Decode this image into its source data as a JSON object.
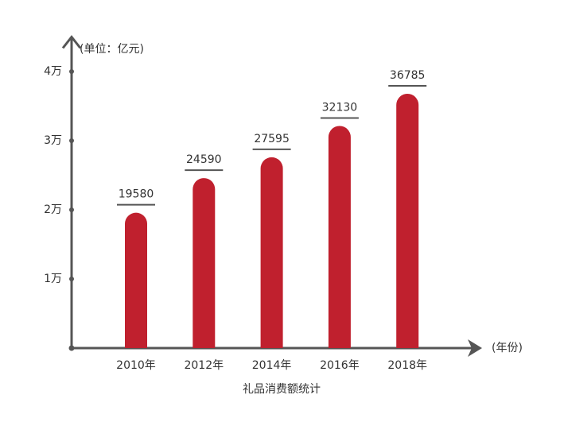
{
  "chart_data": {
    "type": "bar",
    "title": "礼品消费额统计",
    "y_label": "(单位：亿元)",
    "x_label": "(年份)",
    "categories": [
      "2010年",
      "2012年",
      "2014年",
      "2016年",
      "2018年"
    ],
    "values": [
      19580,
      24590,
      27595,
      32130,
      36785
    ],
    "color": "#c0202e",
    "ylim": [
      0,
      45000
    ],
    "yticks": [
      {
        "value": 10000,
        "label": "1万"
      },
      {
        "value": 20000,
        "label": "2万"
      },
      {
        "value": 30000,
        "label": "3万"
      },
      {
        "value": 40000,
        "label": "4万"
      }
    ]
  }
}
